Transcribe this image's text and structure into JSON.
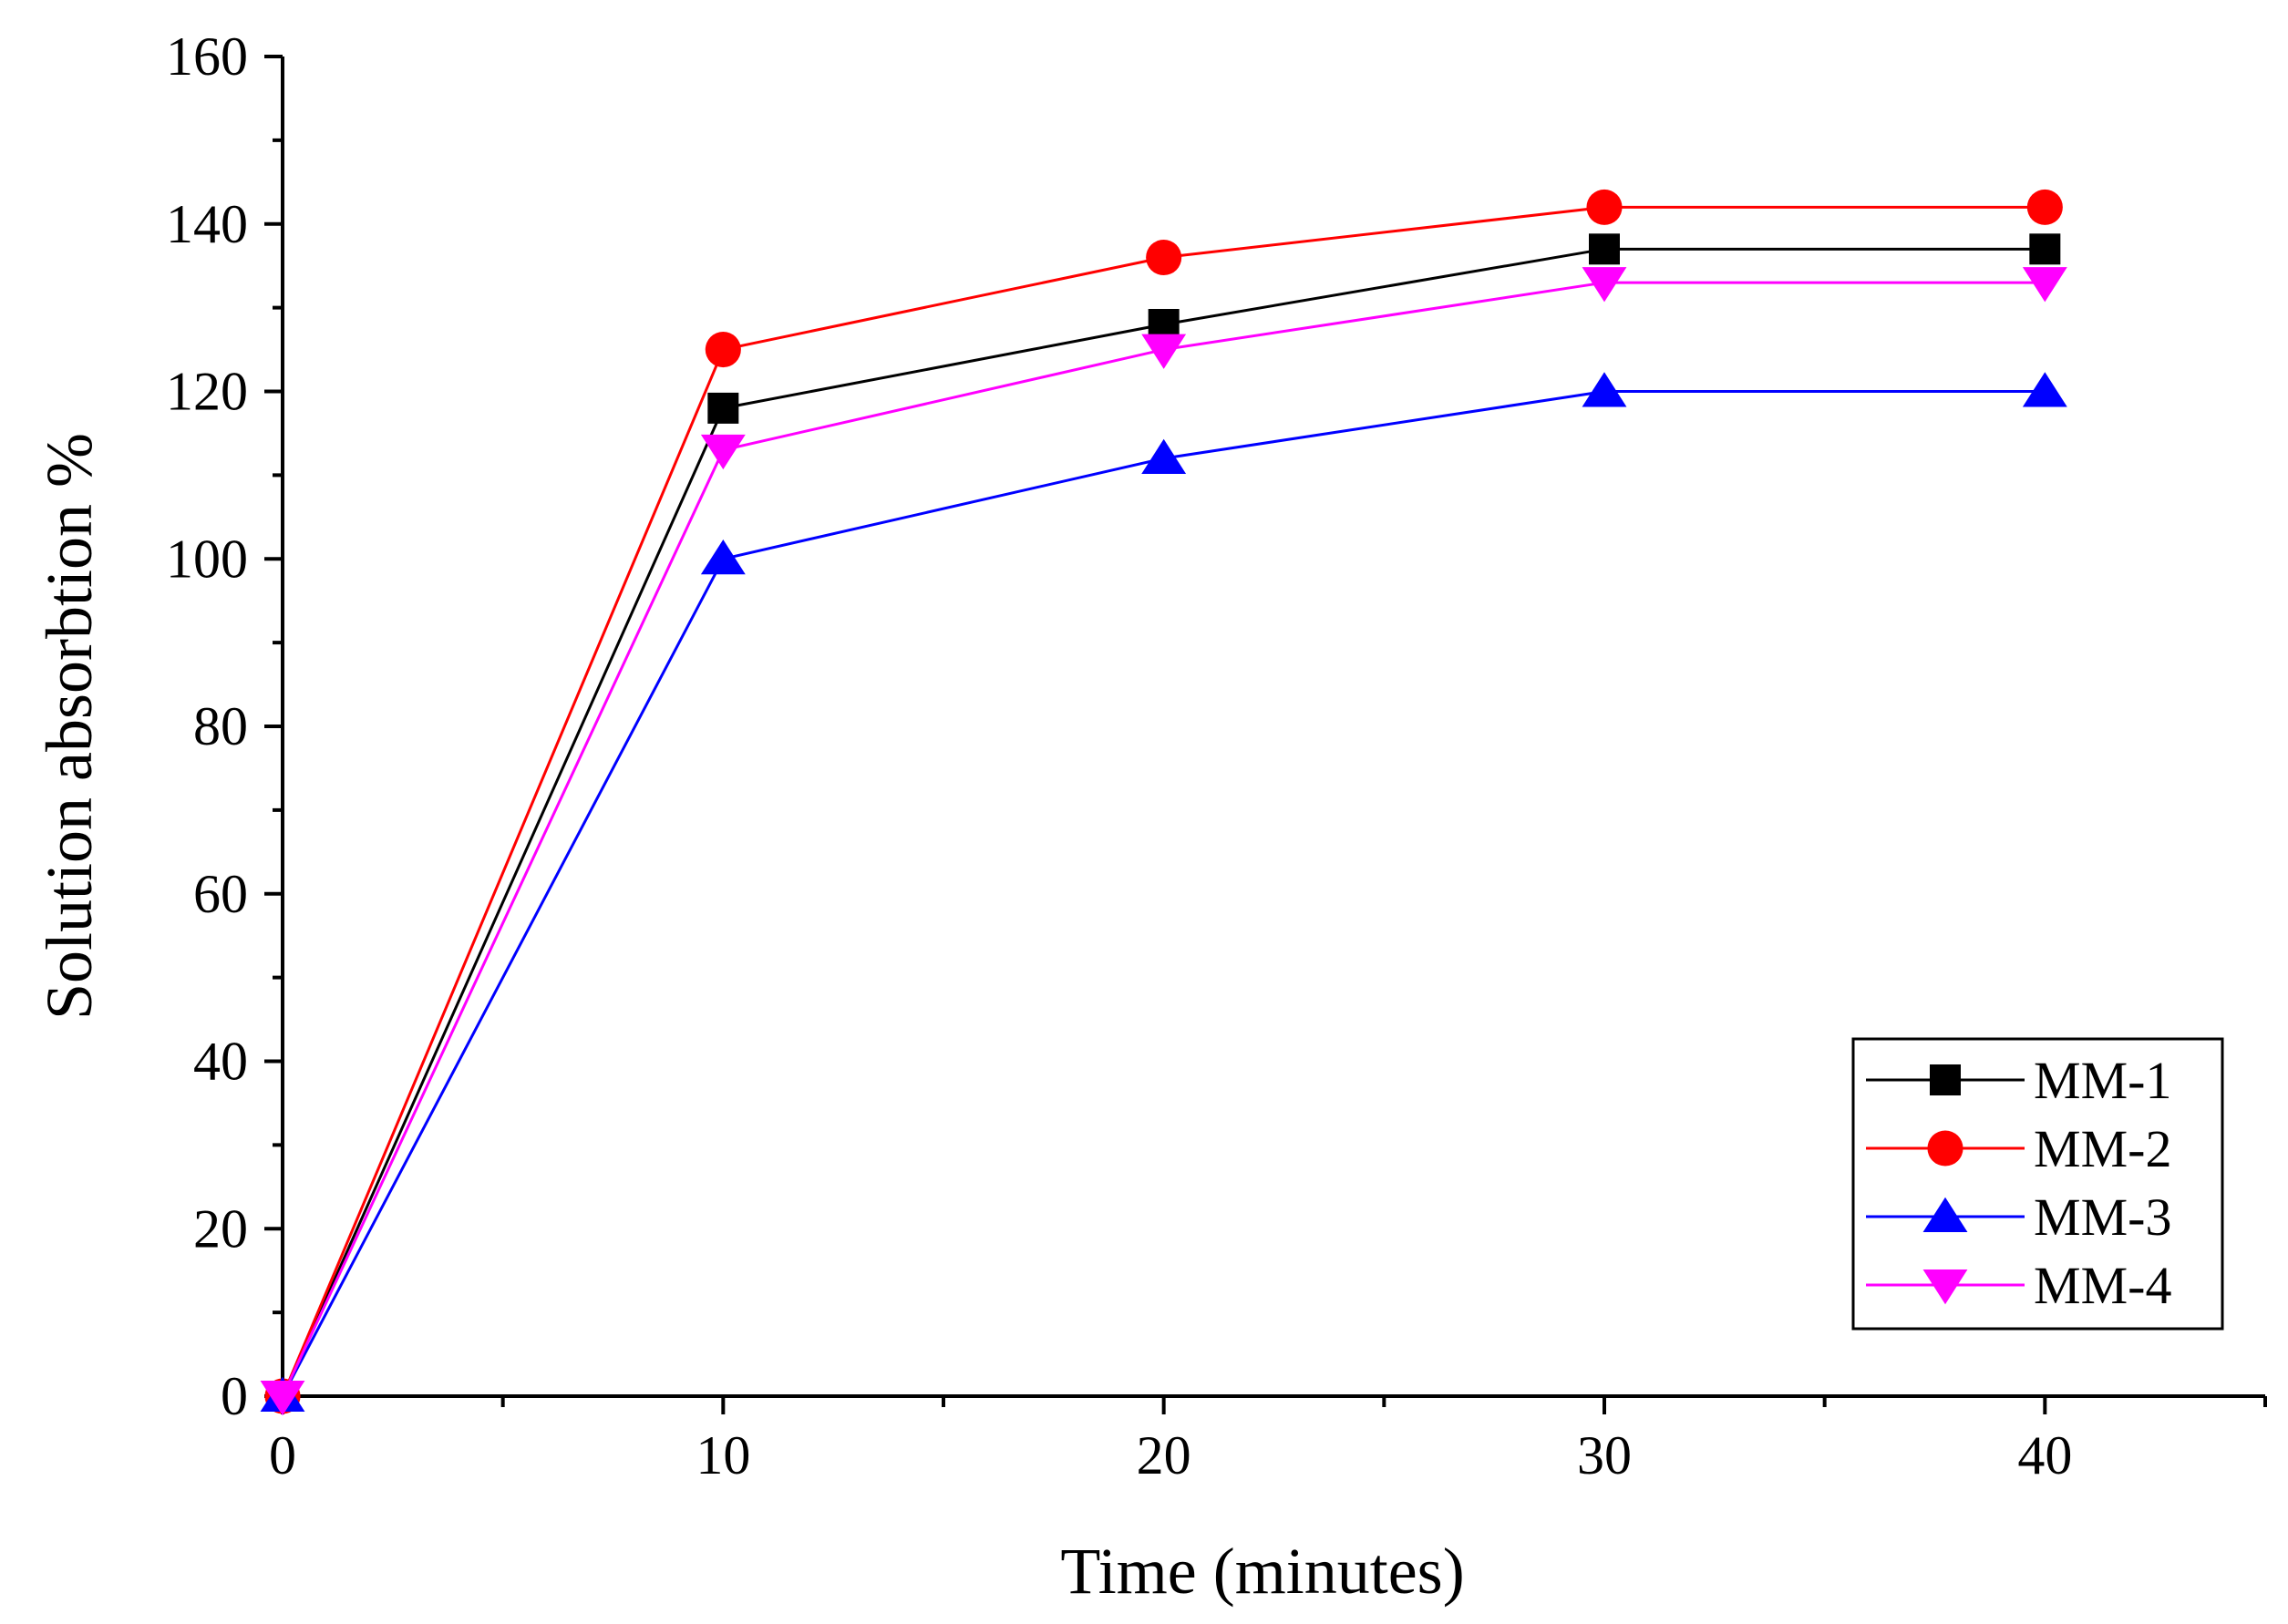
{
  "chart_data": {
    "type": "line",
    "title": "",
    "xlabel": "Time (minutes)",
    "ylabel": "Solution absorbtion %",
    "xlim": [
      0,
      45
    ],
    "ylim": [
      0,
      160
    ],
    "x": [
      0,
      10,
      20,
      30,
      40
    ],
    "xticks": [
      "0",
      "10",
      "20",
      "30",
      "40"
    ],
    "yticks": [
      "0",
      "20",
      "40",
      "60",
      "80",
      "100",
      "120",
      "140",
      "160"
    ],
    "legend_position": "bottom-right",
    "grid": false,
    "series": [
      {
        "name": "MM-1",
        "marker": "square",
        "color": "#000000",
        "values": [
          0,
          118,
          128,
          137,
          137
        ]
      },
      {
        "name": "MM-2",
        "marker": "circle",
        "color": "#ff0000",
        "values": [
          0,
          125,
          136,
          142,
          142
        ]
      },
      {
        "name": "MM-3",
        "marker": "triangle-up",
        "color": "#0000ff",
        "values": [
          0,
          100,
          112,
          120,
          120
        ]
      },
      {
        "name": "MM-4",
        "marker": "triangle-down",
        "color": "#ff00ff",
        "values": [
          0,
          113,
          125,
          133,
          133
        ]
      }
    ]
  }
}
